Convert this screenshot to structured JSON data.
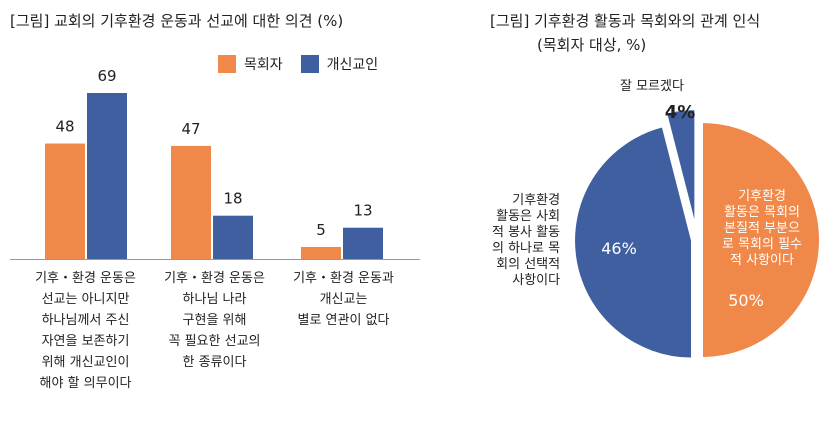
{
  "chart_data": [
    {
      "type": "bar",
      "title": "[그림] 교회의 기후환경 운동과 선교에 대한 의견 (%)",
      "categories": [
        [
          "기후・환경 운동은",
          "선교는 아니지만",
          "하나님께서 주신",
          "자연을 보존하기",
          "위해 개신교인이",
          "해야 할 의무이다"
        ],
        [
          "기후・환경 운동은",
          "하나님 나라",
          "구현을 위해",
          "꼭 필요한 선교의",
          "한 종류이다"
        ],
        [
          "기후・환경 운동과",
          "개신교는",
          "별로 연관이 없다"
        ]
      ],
      "series": [
        {
          "name": "목회자",
          "values": [
            48,
            47,
            5
          ],
          "color": "#F0884A"
        },
        {
          "name": "개신교인",
          "values": [
            69,
            18,
            13
          ],
          "color": "#3F5FA0"
        }
      ],
      "ylim": [
        0,
        70
      ],
      "legend_position": "top-right",
      "grid": false
    },
    {
      "type": "pie",
      "title": [
        "[그림] 기후환경 활동과 목회와의 관계 인식",
        "(목회자 대상, %)"
      ],
      "slices": [
        {
          "label": [
            "기후환경",
            "활동은 목회의",
            "본질적 부분으",
            "로 목회의 필수",
            "적 사항이다"
          ],
          "value": 50,
          "value_label": "50%",
          "color": "#F0884A"
        },
        {
          "label": [
            "기후환경",
            "활동은 사회",
            "적 봉사 활동",
            "의 하나로 목",
            "회의 선택적",
            "사항이다"
          ],
          "value": 46,
          "value_label": "46%",
          "color": "#3F5FA0"
        },
        {
          "label": [
            "잘 모르겠다"
          ],
          "value": 4,
          "value_label": "4%",
          "color": "#3F5FA0"
        }
      ]
    }
  ]
}
